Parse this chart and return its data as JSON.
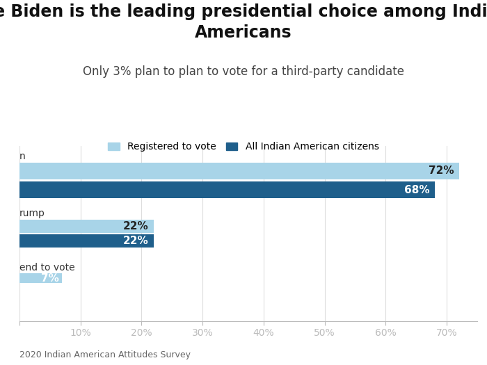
{
  "title": "Joe Biden is the leading presidential choice among Indian\nAmericans",
  "subtitle": "Only 3% plan to plan to vote for a third-party candidate",
  "source": "2020 Indian American Attitudes Survey",
  "legend_labels": [
    "Registered to vote",
    "All Indian American citizens"
  ],
  "color_registered": "#a8d4e8",
  "color_all": "#1f5f8b",
  "registered_values": [
    72,
    22,
    7
  ],
  "all_citizens_values": [
    68,
    22,
    0
  ],
  "cat_labels": [
    "n",
    "rump",
    "end to vote"
  ],
  "xlim_max": 75,
  "xtick_vals": [
    0,
    10,
    20,
    30,
    40,
    50,
    60,
    70
  ],
  "xtick_labels": [
    "",
    "10%",
    "20%",
    "30%",
    "40%",
    "50%",
    "60%",
    "70%"
  ],
  "title_fontsize": 17,
  "subtitle_fontsize": 12,
  "label_fontsize": 11,
  "background_color": "#ffffff"
}
